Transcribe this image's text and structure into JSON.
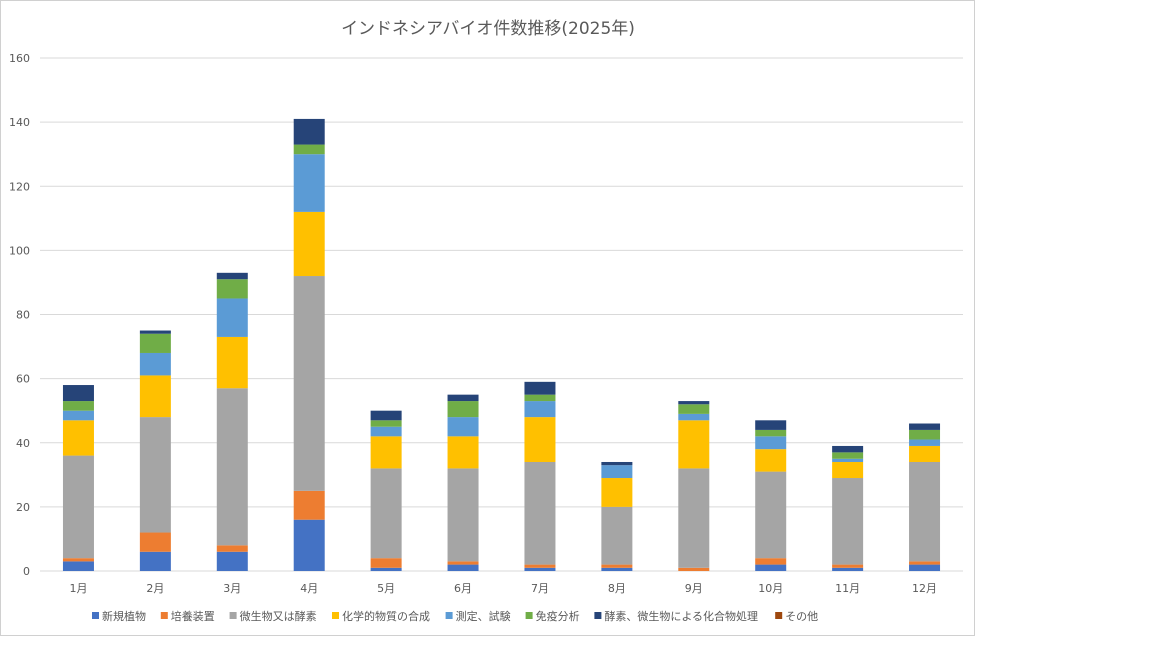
{
  "chart_data": {
    "type": "bar",
    "stacked": true,
    "title": "インドネシアバイオ件数推移(2025年)",
    "xlabel": "",
    "ylabel": "",
    "ylim": [
      0,
      160
    ],
    "yticks": [
      "0",
      "20",
      "40",
      "60",
      "80",
      "100",
      "120",
      "140",
      "160"
    ],
    "grid": true,
    "legend_position": "bottom",
    "categories": [
      "1月",
      "2月",
      "3月",
      "4月",
      "5月",
      "6月",
      "7月",
      "8月",
      "9月",
      "10月",
      "11月",
      "12月"
    ],
    "series": [
      {
        "name": "新規植物",
        "color": "#4472C4",
        "values": [
          3,
          6,
          6,
          16,
          1,
          2,
          1,
          1,
          0,
          2,
          1,
          2
        ]
      },
      {
        "name": "培養装置",
        "color": "#ED7D31",
        "values": [
          1,
          6,
          2,
          9,
          3,
          1,
          1,
          1,
          1,
          2,
          1,
          1
        ]
      },
      {
        "name": "微生物又は酵素",
        "color": "#A5A5A5",
        "values": [
          32,
          36,
          49,
          67,
          28,
          29,
          32,
          18,
          31,
          27,
          27,
          31
        ]
      },
      {
        "name": "化学的物質の合成",
        "color": "#FFC000",
        "values": [
          11,
          13,
          16,
          20,
          10,
          10,
          14,
          9,
          15,
          7,
          5,
          5
        ]
      },
      {
        "name": "測定、試験",
        "color": "#5B9BD5",
        "values": [
          3,
          7,
          12,
          18,
          3,
          6,
          5,
          4,
          2,
          4,
          1,
          2
        ]
      },
      {
        "name": "免疫分析",
        "color": "#70AD47",
        "values": [
          3,
          6,
          6,
          3,
          2,
          5,
          2,
          0,
          3,
          2,
          2,
          3
        ]
      },
      {
        "name": "酵素、微生物による化合物処理",
        "color": "#264478",
        "values": [
          5,
          1,
          2,
          8,
          3,
          2,
          4,
          1,
          1,
          3,
          2,
          2
        ]
      },
      {
        "name": "その他",
        "color": "#9E480E",
        "values": [
          0,
          0,
          0,
          0,
          0,
          0,
          0,
          0,
          0,
          0,
          0,
          0
        ]
      }
    ]
  }
}
